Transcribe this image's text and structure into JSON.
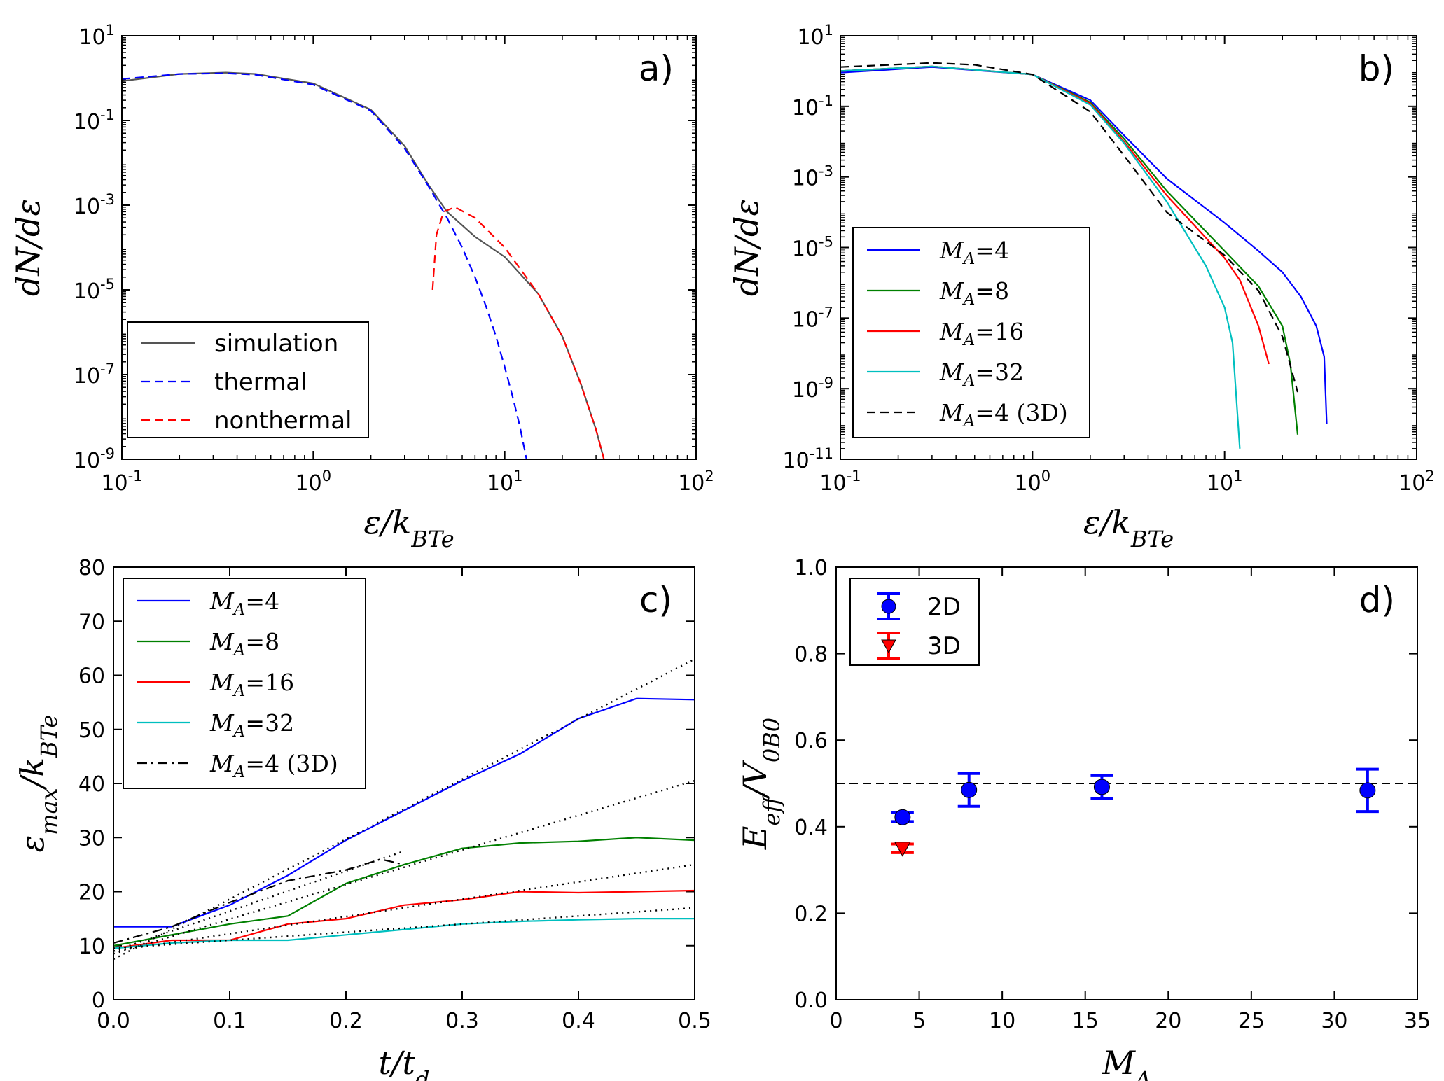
{
  "figure": {
    "panels": [
      "a)",
      "b)",
      "c)",
      "d)"
    ]
  },
  "chart_data": [
    {
      "type": "line",
      "panel": "a)",
      "xscale": "log",
      "yscale": "log",
      "xlabel": "ε/k_BT_e",
      "ylabel": "dN/dε",
      "xlim_exp": [
        -1,
        2
      ],
      "ylim_exp": [
        -9,
        1
      ],
      "xticks": [
        -1,
        0,
        1,
        2
      ],
      "yticks": [
        -9,
        -7,
        -5,
        -3,
        -1,
        1
      ],
      "legend": {
        "position": "lower-left",
        "labels": [
          "simulation",
          "thermal",
          "nonthermal"
        ]
      },
      "series": [
        {
          "name": "simulation",
          "color": "#555555",
          "style": "solid",
          "x": [
            0.1,
            0.2,
            0.35,
            0.5,
            1.0,
            2.0,
            3.0,
            4.0,
            5.0,
            7.0,
            10,
            15,
            20,
            25,
            30,
            33
          ],
          "y": [
            0.85,
            1.25,
            1.35,
            1.25,
            0.75,
            0.18,
            0.025,
            0.003,
            0.0007,
            0.00018,
            6e-05,
            8e-06,
            8e-07,
            6e-08,
            5e-09,
            1e-09
          ]
        },
        {
          "name": "thermal",
          "color": "#0000ff",
          "style": "dashed",
          "x": [
            0.1,
            0.2,
            0.35,
            0.5,
            1.0,
            2.0,
            3.0,
            4.0,
            5.0,
            6.0,
            7.0,
            8.0,
            9.0,
            10,
            11,
            12,
            13
          ],
          "y": [
            0.95,
            1.25,
            1.3,
            1.2,
            0.7,
            0.17,
            0.022,
            0.0028,
            0.0005,
            0.0001,
            2e-05,
            4e-06,
            8e-07,
            1.5e-07,
            3e-08,
            6e-09,
            1e-09
          ]
        },
        {
          "name": "nonthermal",
          "color": "#ff0000",
          "style": "dashed",
          "x": [
            4.2,
            4.4,
            4.8,
            5.5,
            7.0,
            10,
            15,
            20,
            25,
            30,
            33
          ],
          "y": [
            1e-05,
            0.0002,
            0.0007,
            0.0009,
            0.0005,
            0.0001,
            8e-06,
            8e-07,
            6e-08,
            5e-09,
            1e-09
          ]
        }
      ]
    },
    {
      "type": "line",
      "panel": "b)",
      "xscale": "log",
      "yscale": "log",
      "xlabel": "ε/k_BT_e",
      "ylabel": "dN/dε",
      "xlim_exp": [
        -1,
        2
      ],
      "ylim_exp": [
        -11,
        1
      ],
      "xticks": [
        -1,
        0,
        1,
        2
      ],
      "yticks": [
        -11,
        -9,
        -7,
        -5,
        -3,
        -1,
        1
      ],
      "legend": {
        "position": "lower-left",
        "labels": [
          "M_A=4",
          "M_A=8",
          "M_A=16",
          "M_A=32",
          "M_A=4 (3D)"
        ]
      },
      "series": [
        {
          "name": "M_A=4",
          "color": "#0000ff",
          "style": "solid",
          "x": [
            0.1,
            0.3,
            1.0,
            2.0,
            3.0,
            5.0,
            10,
            15,
            20,
            25,
            30,
            33,
            34
          ],
          "y": [
            0.9,
            1.3,
            0.8,
            0.15,
            0.015,
            0.0009,
            5e-05,
            8e-06,
            2e-06,
            4e-07,
            6e-08,
            8e-09,
            1e-10
          ]
        },
        {
          "name": "M_A=8",
          "color": "#008000",
          "style": "solid",
          "x": [
            0.1,
            0.3,
            1.0,
            2.0,
            3.0,
            5.0,
            10,
            15,
            20,
            22,
            24
          ],
          "y": [
            1.0,
            1.35,
            0.8,
            0.13,
            0.012,
            0.0004,
            8e-06,
            8e-07,
            6e-08,
            5e-09,
            5e-11
          ]
        },
        {
          "name": "M_A=16",
          "color": "#ff0000",
          "style": "solid",
          "x": [
            0.1,
            0.3,
            1.0,
            2.0,
            3.0,
            5.0,
            10,
            12,
            15,
            17
          ],
          "y": [
            1.0,
            1.35,
            0.8,
            0.12,
            0.01,
            0.0003,
            5e-06,
            1.2e-06,
            6e-08,
            5e-09
          ]
        },
        {
          "name": "M_A=32",
          "color": "#00bfbf",
          "style": "solid",
          "x": [
            0.1,
            0.3,
            1.0,
            2.0,
            3.0,
            5.0,
            8.0,
            10,
            11,
            12
          ],
          "y": [
            1.0,
            1.35,
            0.8,
            0.11,
            0.009,
            0.0002,
            3e-06,
            2e-07,
            2e-08,
            2e-11
          ]
        },
        {
          "name": "M_A=4 (3D)",
          "color": "#000000",
          "style": "dashed",
          "x": [
            0.1,
            0.3,
            0.5,
            1.0,
            2.0,
            3.0,
            5.0,
            10,
            15,
            20,
            24
          ],
          "y": [
            1.3,
            1.7,
            1.5,
            0.8,
            0.07,
            0.004,
            0.0001,
            6e-06,
            6e-07,
            3e-08,
            8e-10
          ]
        }
      ]
    },
    {
      "type": "line",
      "panel": "c)",
      "xlabel": "t/t_d",
      "ylabel": "ε_max/k_BT_e",
      "xlim": [
        0,
        0.5
      ],
      "ylim": [
        0,
        80
      ],
      "xticks": [
        "0.0",
        "0.1",
        "0.2",
        "0.3",
        "0.4",
        "0.5"
      ],
      "yticks": [
        "0",
        "10",
        "20",
        "30",
        "40",
        "50",
        "60",
        "70",
        "80"
      ],
      "legend": {
        "position": "top-left",
        "labels": [
          "M_A=4",
          "M_A=8",
          "M_A=16",
          "M_A=32",
          "M_A=4 (3D)"
        ]
      },
      "series": [
        {
          "name": "M_A=4",
          "color": "#0000ff",
          "style": "solid",
          "x": [
            0,
            0.05,
            0.1,
            0.15,
            0.2,
            0.25,
            0.3,
            0.35,
            0.4,
            0.45,
            0.5
          ],
          "y": [
            13.5,
            13.5,
            17.5,
            23,
            29.5,
            35,
            40.5,
            45.5,
            52,
            55.7,
            55.5
          ]
        },
        {
          "name": "M_A=8",
          "color": "#008000",
          "style": "solid",
          "x": [
            0,
            0.05,
            0.1,
            0.15,
            0.2,
            0.25,
            0.3,
            0.35,
            0.4,
            0.45,
            0.5
          ],
          "y": [
            10,
            12,
            14,
            15.5,
            21.5,
            25,
            28,
            29,
            29.3,
            30,
            29.5
          ]
        },
        {
          "name": "M_A=16",
          "color": "#ff0000",
          "style": "solid",
          "x": [
            0,
            0.05,
            0.1,
            0.15,
            0.2,
            0.25,
            0.3,
            0.35,
            0.4,
            0.45,
            0.5
          ],
          "y": [
            9.5,
            11,
            11,
            14,
            15,
            17.5,
            18.5,
            20,
            19.8,
            20,
            20.2
          ]
        },
        {
          "name": "M_A=32",
          "color": "#00bfbf",
          "style": "solid",
          "x": [
            0,
            0.05,
            0.1,
            0.15,
            0.2,
            0.25,
            0.3,
            0.35,
            0.4,
            0.45,
            0.5
          ],
          "y": [
            9.5,
            10.5,
            11,
            11,
            12,
            13,
            14,
            14.5,
            14.8,
            15,
            15
          ]
        },
        {
          "name": "M_A=4 (3D)",
          "color": "#000000",
          "style": "dashdot",
          "x": [
            0,
            0.05,
            0.1,
            0.15,
            0.2,
            0.23,
            0.25
          ],
          "y": [
            10.5,
            13.5,
            18,
            22,
            24,
            26,
            25
          ]
        },
        {
          "name": "fit-1",
          "color": "#000000",
          "style": "dotted",
          "x": [
            0,
            0.5
          ],
          "y": [
            7.5,
            63
          ]
        },
        {
          "name": "fit-2",
          "color": "#000000",
          "style": "dotted",
          "x": [
            0,
            0.5
          ],
          "y": [
            8.5,
            40.5
          ]
        },
        {
          "name": "fit-3",
          "color": "#000000",
          "style": "dotted",
          "x": [
            0,
            0.5
          ],
          "y": [
            9,
            25
          ]
        },
        {
          "name": "fit-4",
          "color": "#000000",
          "style": "dotted",
          "x": [
            0,
            0.5
          ],
          "y": [
            9.5,
            17
          ]
        },
        {
          "name": "fit-3d",
          "color": "#000000",
          "style": "dotted",
          "x": [
            0,
            0.25
          ],
          "y": [
            9,
            27.5
          ]
        }
      ]
    },
    {
      "type": "scatter",
      "panel": "d)",
      "xlabel": "M_A",
      "ylabel": "E_eff/V_0B_0",
      "xlim": [
        0,
        35
      ],
      "ylim": [
        0,
        1
      ],
      "xticks": [
        "0",
        "5",
        "10",
        "15",
        "20",
        "25",
        "30",
        "35"
      ],
      "yticks": [
        "0.0",
        "0.2",
        "0.4",
        "0.6",
        "0.8",
        "1.0"
      ],
      "hline": 0.5,
      "legend": {
        "position": "top-left",
        "labels": [
          "2D",
          "3D"
        ]
      },
      "series": [
        {
          "name": "2D",
          "color": "#0000ff",
          "marker": "circle",
          "x": [
            4,
            8,
            16,
            32
          ],
          "y": [
            0.422,
            0.485,
            0.492,
            0.484
          ],
          "err": [
            0.01,
            0.038,
            0.026,
            0.049
          ]
        },
        {
          "name": "3D",
          "color": "#ff0000",
          "marker": "triangle-down",
          "x": [
            4
          ],
          "y": [
            0.35
          ],
          "err": [
            0.01
          ]
        }
      ]
    }
  ]
}
